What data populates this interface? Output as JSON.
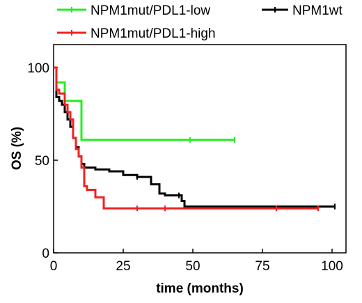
{
  "chart_data": {
    "type": "line",
    "step": true,
    "xlabel": "time (months)",
    "ylabel": "OS (%)",
    "xlim": [
      0,
      105
    ],
    "ylim": [
      0,
      100
    ],
    "xticks": [
      "0",
      "25",
      "50",
      "75",
      "100"
    ],
    "yticks": [
      "0",
      "50",
      "100"
    ],
    "legend_placement": "top",
    "series": [
      {
        "name": "NPM1mut/PDL1-low",
        "color": "#22ee22",
        "x": [
          0,
          1,
          1,
          4,
          4,
          10,
          10,
          65
        ],
        "y": [
          100,
          100,
          92,
          92,
          82,
          82,
          61,
          61
        ],
        "censor": [
          [
            49,
            61
          ],
          [
            65,
            61
          ]
        ]
      },
      {
        "name": "NPM1wt",
        "color": "#000000",
        "x": [
          0,
          1,
          1,
          2,
          3,
          4,
          5,
          6,
          7,
          8,
          9,
          10,
          11,
          12,
          15,
          20,
          25,
          30,
          35,
          38,
          40,
          42,
          44,
          45,
          46,
          47,
          55,
          70,
          85,
          101
        ],
        "y": [
          100,
          100,
          84,
          82,
          80,
          76,
          72,
          68,
          62,
          57,
          52,
          48,
          46,
          46,
          45,
          44,
          42,
          41,
          37,
          32,
          31,
          31,
          31,
          31,
          28,
          25,
          25,
          25,
          25,
          25
        ],
        "censor": [
          [
            30,
            41
          ],
          [
            45,
            31
          ],
          [
            101,
            25
          ]
        ]
      },
      {
        "name": "NPM1mut/PDL1-high",
        "color": "#ee2222",
        "x": [
          0,
          1,
          1,
          2,
          4,
          5,
          6,
          7,
          8,
          9,
          10,
          11,
          12,
          15,
          18,
          20,
          30,
          40,
          60,
          80,
          95
        ],
        "y": [
          100,
          100,
          88,
          86,
          80,
          76,
          72,
          62,
          56,
          52,
          46,
          36,
          34,
          30,
          24,
          24,
          24,
          24,
          24,
          24,
          24
        ],
        "censor": [
          [
            30,
            24
          ],
          [
            40,
            24
          ],
          [
            80,
            24
          ],
          [
            95,
            24
          ]
        ]
      }
    ]
  }
}
